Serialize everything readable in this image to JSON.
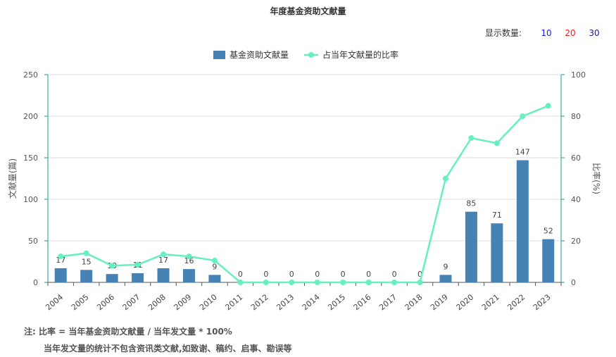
{
  "header": {
    "title": "年度基金资助文献量",
    "count_label": "显示数量:",
    "count_options": [
      {
        "label": "10",
        "color": "#1a1aff"
      },
      {
        "label": "20",
        "color": "#ff1a1a"
      },
      {
        "label": "30",
        "color": "#1a1a99"
      }
    ]
  },
  "footer": {
    "line1": "注:  比率 = 当年基金资助文献量 / 当年发文量 * 100%",
    "line2": "当年发文量的统计不包含资讯类文献,如致谢、稿约、启事、勘误等"
  },
  "chart_data": {
    "type": "bar",
    "x": [
      "2004",
      "2005",
      "2006",
      "2007",
      "2008",
      "2009",
      "2010",
      "2011",
      "2012",
      "2013",
      "2014",
      "2015",
      "2016",
      "2017",
      "2018",
      "2019",
      "2020",
      "2021",
      "2022",
      "2023"
    ],
    "series": [
      {
        "name": "基金资助文献量",
        "type": "bar",
        "axis": "left",
        "color": "#4682b4",
        "values": [
          17,
          15,
          10,
          11,
          17,
          16,
          9,
          0,
          0,
          0,
          0,
          0,
          0,
          0,
          0,
          9,
          85,
          71,
          147,
          52
        ]
      },
      {
        "name": "占当年文献量的比率",
        "type": "line",
        "axis": "right",
        "color": "#66f0c0",
        "values": [
          12.5,
          14,
          8,
          8.5,
          13.5,
          12.5,
          10.5,
          0,
          0,
          0,
          0,
          0,
          0,
          0,
          0,
          50,
          69.5,
          67,
          80,
          85
        ]
      }
    ],
    "ylabel": "文献量(篇)",
    "ylabel_right": "比率(%)",
    "ylim": [
      0,
      250
    ],
    "ylim_right": [
      0,
      100
    ],
    "yticks": [
      0,
      50,
      100,
      150,
      200,
      250
    ],
    "yticks_right": [
      0,
      20,
      40,
      60,
      80,
      100
    ],
    "grid": true,
    "legend": "top-center"
  }
}
